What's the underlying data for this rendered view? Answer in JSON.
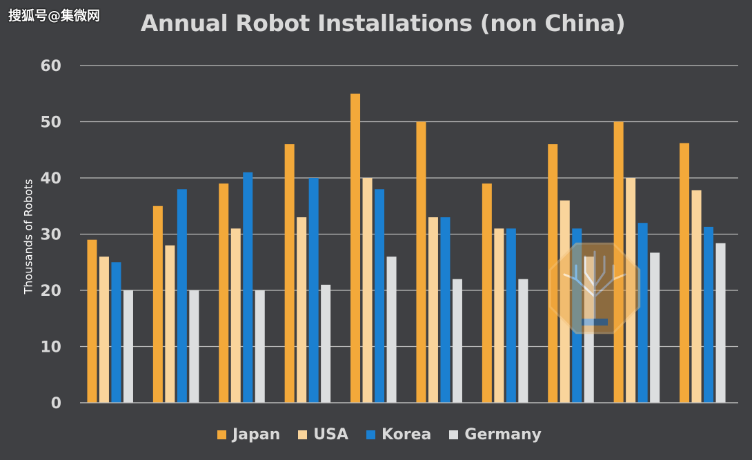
{
  "watermark": "搜狐号@集微网",
  "chart_data": {
    "type": "bar",
    "title": "Annual Robot Installations (non China)",
    "ylabel": "Thousands of Robots",
    "xlabel": "",
    "ylim": [
      0,
      60
    ],
    "yticks": [
      0,
      10,
      20,
      30,
      40,
      50,
      60
    ],
    "ytick_labels": [
      "0",
      "10",
      "20",
      "30",
      "40",
      "50",
      "60"
    ],
    "grid": true,
    "legend_position": "bottom",
    "group_count": 10,
    "series": [
      {
        "name": "Japan",
        "color": "#f3a93a",
        "values": [
          29,
          35,
          39,
          46,
          55,
          50,
          39,
          46,
          50,
          46.2
        ]
      },
      {
        "name": "USA",
        "color": "#f9d49b",
        "values": [
          26,
          28,
          31,
          33,
          40,
          33,
          31,
          36,
          40,
          37.8
        ]
      },
      {
        "name": "Korea",
        "color": "#1b80d1",
        "values": [
          25,
          38,
          41,
          40,
          38,
          33,
          31,
          31,
          32,
          31.3
        ]
      },
      {
        "name": "Germany",
        "color": "#dcdedf",
        "values": [
          20,
          20,
          20,
          21,
          26,
          22,
          22,
          26,
          26.7,
          28.4
        ]
      }
    ]
  },
  "logo": {
    "icon": "tree-octagon-logo-icon",
    "color": "#e9a03b"
  }
}
